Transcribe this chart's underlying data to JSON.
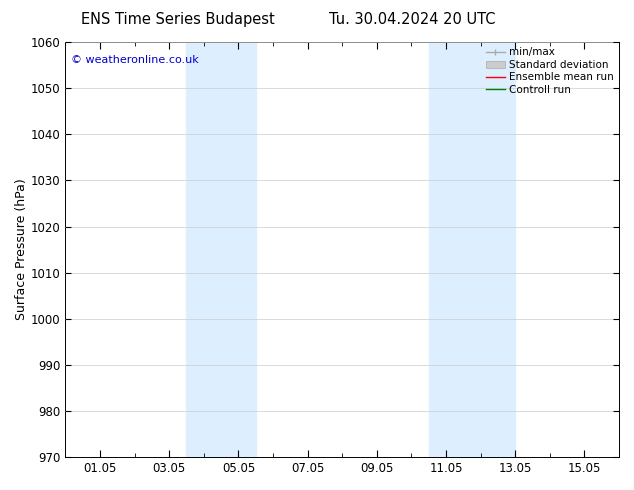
{
  "title_left": "ENS Time Series Budapest",
  "title_right": "Tu. 30.04.2024 20 UTC",
  "ylabel": "Surface Pressure (hPa)",
  "xlabel": "",
  "ylim": [
    970,
    1060
  ],
  "yticks": [
    970,
    980,
    990,
    1000,
    1010,
    1020,
    1030,
    1040,
    1050,
    1060
  ],
  "xtick_labels": [
    "01.05",
    "03.05",
    "05.05",
    "07.05",
    "09.05",
    "11.05",
    "13.05",
    "15.05"
  ],
  "xtick_positions": [
    1,
    3,
    5,
    7,
    9,
    11,
    13,
    15
  ],
  "xlim": [
    0,
    16
  ],
  "shaded_bands": [
    {
      "x_start": 3.5,
      "x_end": 5.5
    },
    {
      "x_start": 10.5,
      "x_end": 13.0
    }
  ],
  "shaded_color": "#ddeeff",
  "background_color": "#ffffff",
  "grid_color": "#cccccc",
  "watermark_text": "© weatheronline.co.uk",
  "watermark_color": "#0000cc",
  "legend_items": [
    {
      "label": "min/max",
      "color": "#aaaaaa",
      "linestyle": "-",
      "linewidth": 1.0
    },
    {
      "label": "Standard deviation",
      "color": "#cccccc",
      "linestyle": "-",
      "linewidth": 5
    },
    {
      "label": "Ensemble mean run",
      "color": "#ff0000",
      "linestyle": "-",
      "linewidth": 1.0
    },
    {
      "label": "Controll run",
      "color": "#008000",
      "linestyle": "-",
      "linewidth": 1.0
    }
  ],
  "tick_fontsize": 8.5,
  "label_fontsize": 9,
  "title_fontsize": 10.5,
  "watermark_fontsize": 8
}
